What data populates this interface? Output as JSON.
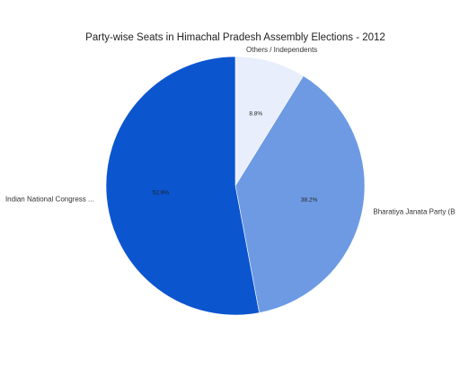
{
  "chart_data": {
    "type": "pie",
    "title": "Party-wise Seats in Himachal Pradesh Assembly Elections - 2012",
    "slices": [
      {
        "label": "Others / Independents",
        "value": 8.8,
        "pct_label": "8.8%",
        "color": "#e8eefc"
      },
      {
        "label": "Bharatiya Janata Party (B",
        "value": 38.2,
        "pct_label": "38.2%",
        "color": "#6d9ae3"
      },
      {
        "label": "Indian National Congress ...",
        "value": 52.9,
        "pct_label": "52.9%",
        "color": "#0b55cf"
      }
    ],
    "legend": "none"
  }
}
